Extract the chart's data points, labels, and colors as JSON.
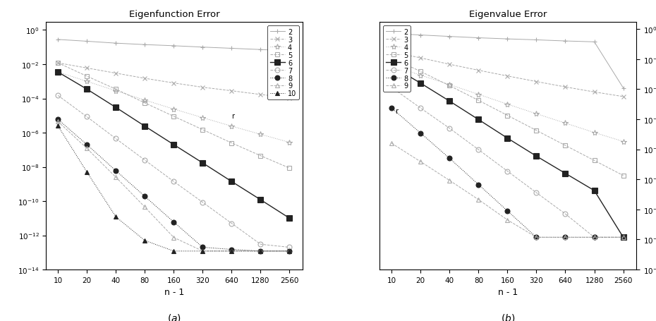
{
  "x_vals": [
    10,
    20,
    40,
    80,
    160,
    320,
    640,
    1280,
    2560
  ],
  "title_a": "Eigenfunction Error",
  "title_b": "Eigenvalue Error",
  "xlabel": "n - 1",
  "ylim_a": [
    1e-14,
    3.0
  ],
  "ylim_b": [
    1e-16,
    3.0
  ],
  "ef_data": {
    "2": [
      0.28,
      0.22,
      0.17,
      0.14,
      0.12,
      0.1,
      0.085,
      0.072,
      0.06
    ],
    "3": [
      0.012,
      0.006,
      0.003,
      0.0015,
      0.0008,
      0.00045,
      0.00028,
      0.00017,
      0.00011
    ],
    "4": [
      0.0035,
      0.001,
      0.00028,
      8e-05,
      2.4e-05,
      7.5e-06,
      2.4e-06,
      8e-07,
      2.7e-07
    ],
    "5": [
      0.012,
      0.002,
      0.00035,
      5.5e-05,
      9e-06,
      1.5e-06,
      2.5e-07,
      4.5e-08,
      8.5e-09
    ],
    "6": [
      0.0035,
      0.00035,
      3e-05,
      2.4e-06,
      2e-07,
      1.7e-08,
      1.4e-09,
      1.2e-10,
      1e-11
    ],
    "7": [
      0.00015,
      8.5e-06,
      4.5e-07,
      2.5e-08,
      1.4e-09,
      8.5e-11,
      5e-12,
      3e-13,
      2e-13
    ],
    "8": [
      6e-06,
      2e-07,
      6e-09,
      1.9e-10,
      6e-12,
      2e-13,
      1.5e-13,
      1.2e-13,
      1.2e-13
    ],
    "9": [
      4.5e-06,
      1.2e-07,
      2.5e-09,
      4.5e-11,
      7.5e-13,
      1.2e-13,
      1.2e-13,
      1.2e-13,
      1.2e-13
    ],
    "10": [
      2.5e-06,
      5e-09,
      1.2e-11,
      5e-13,
      1.2e-13,
      1.2e-13,
      1.2e-13,
      1.2e-13,
      1.2e-13
    ]
  },
  "ev_data": {
    "2": [
      0.5,
      0.4,
      0.32,
      0.26,
      0.22,
      0.19,
      0.16,
      0.14,
      0.00012
    ],
    "3": [
      0.03,
      0.012,
      0.0045,
      0.0018,
      0.00075,
      0.00032,
      0.00014,
      6.5e-05,
      3.2e-05
    ],
    "4": [
      0.0035,
      0.00085,
      0.0002,
      4.5e-05,
      1e-05,
      2.3e-06,
      5.5e-07,
      1.3e-07,
      3.3e-08
    ],
    "5": [
      0.012,
      0.0015,
      0.00017,
      1.8e-05,
      1.8e-06,
      1.8e-07,
      1.8e-08,
      1.8e-09,
      1.8e-10
    ],
    "6": [
      0.0035,
      0.00025,
      1.6e-05,
      9.5e-07,
      5.5e-08,
      3.5e-09,
      2.5e-10,
      1.8e-11,
      1.4e-14
    ],
    "7": [
      0.00013,
      5.5e-06,
      2.5e-07,
      9.5e-09,
      3.5e-10,
      1.3e-11,
      5e-13,
      1.4e-14,
      1.4e-14
    ],
    "8": [
      5.5e-06,
      1.2e-07,
      2.5e-09,
      4.5e-11,
      8e-13,
      1.4e-14,
      1.4e-14,
      1.4e-14,
      1.4e-14
    ],
    "9": [
      2.5e-08,
      1.5e-09,
      8.5e-11,
      4.5e-12,
      2e-13,
      1.4e-14,
      1.4e-14,
      1.4e-14,
      1.4e-14
    ]
  },
  "series_styles": {
    "2": {
      "color": "#aaaaaa",
      "linestyle": "-",
      "marker": "+",
      "markersize": 5,
      "filled": false,
      "lw": 0.7
    },
    "3": {
      "color": "#aaaaaa",
      "linestyle": "--",
      "marker": "x",
      "markersize": 5,
      "filled": false,
      "lw": 0.7
    },
    "4": {
      "color": "#aaaaaa",
      "linestyle": ":",
      "marker": "*",
      "markersize": 6,
      "filled": false,
      "lw": 0.7
    },
    "5": {
      "color": "#aaaaaa",
      "linestyle": "--",
      "marker": "s",
      "markersize": 4,
      "filled": false,
      "lw": 0.7
    },
    "6": {
      "color": "#222222",
      "linestyle": "-",
      "marker": "s",
      "markersize": 6,
      "filled": true,
      "lw": 1.0
    },
    "7": {
      "color": "#aaaaaa",
      "linestyle": "--",
      "marker": "o",
      "markersize": 5,
      "filled": false,
      "lw": 0.7
    },
    "8": {
      "color": "#222222",
      "linestyle": ":",
      "marker": "o",
      "markersize": 5,
      "filled": true,
      "lw": 0.7
    },
    "9": {
      "color": "#aaaaaa",
      "linestyle": "--",
      "marker": "^",
      "markersize": 4,
      "filled": false,
      "lw": 0.7
    },
    "10": {
      "color": "#222222",
      "linestyle": ":",
      "marker": "^",
      "markersize": 4,
      "filled": true,
      "lw": 0.7
    }
  },
  "ef_keys": [
    "2",
    "3",
    "4",
    "5",
    "6",
    "7",
    "8",
    "9",
    "10"
  ],
  "ev_keys": [
    "2",
    "3",
    "4",
    "5",
    "6",
    "7",
    "8",
    "9"
  ]
}
